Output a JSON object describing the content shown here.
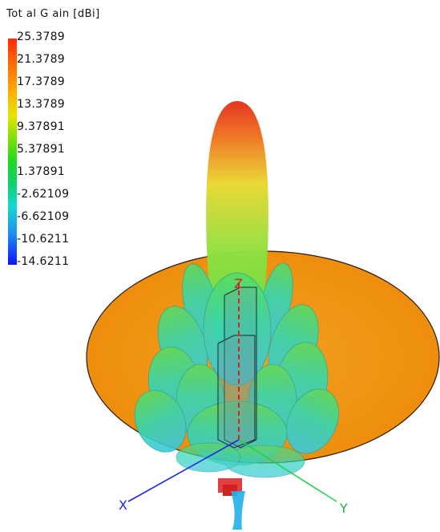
{
  "legend": {
    "title": "Tot al G ain [dBi]",
    "values": [
      "25.3789",
      "21.3789",
      "17.3789",
      "13.3789",
      "9.37891",
      "5.37891",
      "1.37891",
      "-2.62109",
      "-6.62109",
      "-10.6211",
      "-14.6211"
    ]
  },
  "axes": {
    "x": "X",
    "y": "Y",
    "z": "Z"
  },
  "colors": {
    "reflector": "#f2960e",
    "main_lobe_top": "#e63a1a",
    "main_lobe_bottom": "#4ed84a",
    "side_lobes": "#33d6c0",
    "x_axis": "#1a2ae0",
    "y_axis": "#22d24a",
    "z_axis": "#e02020"
  }
}
